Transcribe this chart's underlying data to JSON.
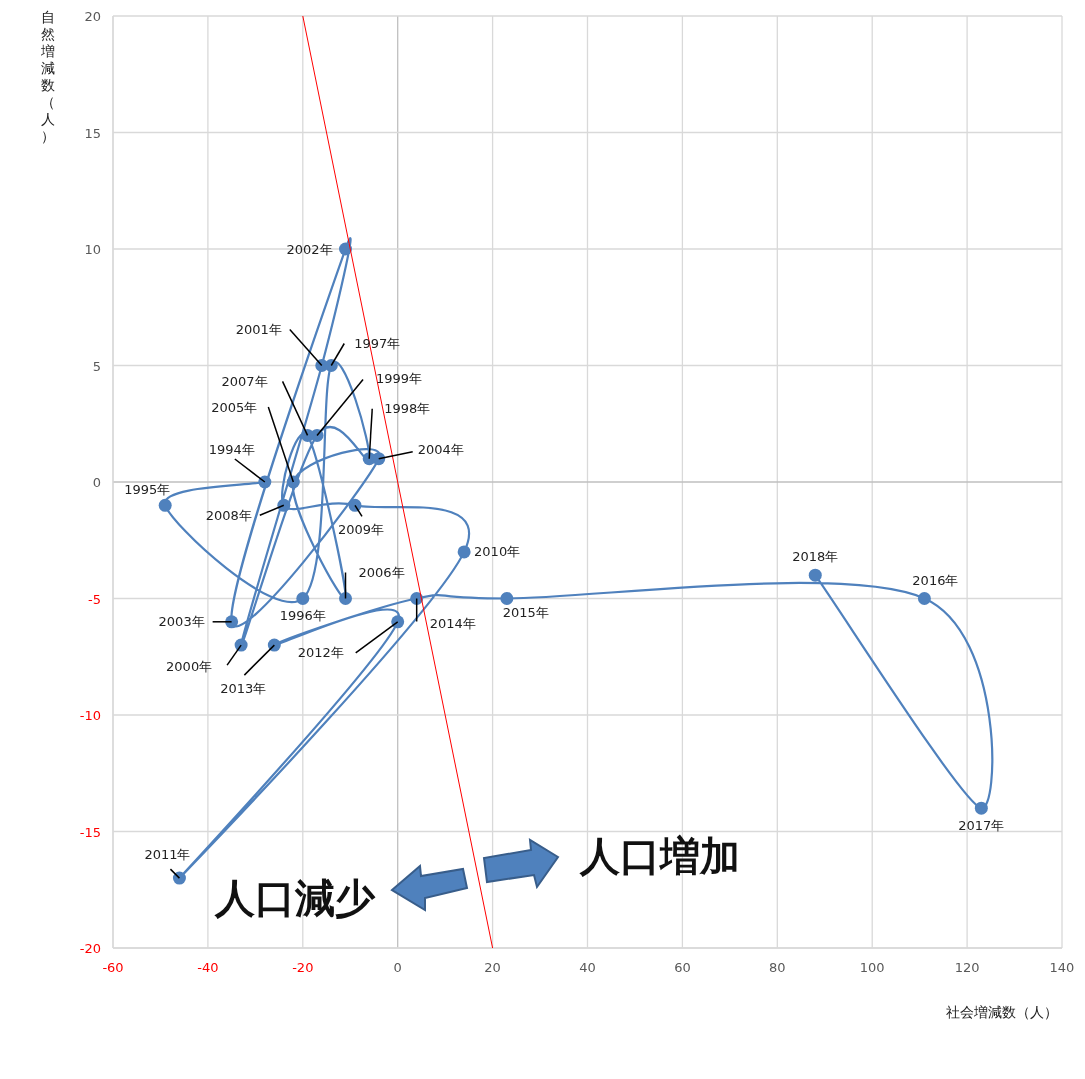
{
  "chart_data": {
    "type": "line",
    "xlabel": "社会増減数（人）",
    "ylabel": "自然増減数（人）",
    "xlim": [
      -60,
      140
    ],
    "ylim": [
      -20,
      20
    ],
    "xticks": [
      -60,
      -40,
      -20,
      0,
      20,
      40,
      60,
      80,
      100,
      120,
      140
    ],
    "yticks": [
      -20,
      -15,
      -10,
      -5,
      0,
      5,
      10,
      15,
      20
    ],
    "grid": true,
    "marker": "circle",
    "line_style": "solid",
    "annotations": [
      "人口減少",
      "人口増加",
      {
        "text": "1994年",
        "x": -28,
        "y": 0
      },
      {
        "text": "1995年",
        "x": -49,
        "y": -1
      },
      {
        "text": "1996年",
        "x": -20,
        "y": -5
      },
      {
        "text": "1997年",
        "x": -14,
        "y": 5
      },
      {
        "text": "1998年",
        "x": -6,
        "y": 1
      },
      {
        "text": "1999年",
        "x": -17,
        "y": 2
      },
      {
        "text": "2000年",
        "x": -33,
        "y": -7
      },
      {
        "text": "2001年",
        "x": -16,
        "y": 5
      },
      {
        "text": "2002年",
        "x": -11,
        "y": 10
      },
      {
        "text": "2003年",
        "x": -35,
        "y": -6
      },
      {
        "text": "2004年",
        "x": -4,
        "y": 1
      },
      {
        "text": "2005年",
        "x": -22,
        "y": 0
      },
      {
        "text": "2006年",
        "x": -11,
        "y": -5
      },
      {
        "text": "2007年",
        "x": -19,
        "y": 2
      },
      {
        "text": "2008年",
        "x": -24,
        "y": -1
      },
      {
        "text": "2009年",
        "x": -9,
        "y": -1
      },
      {
        "text": "2010年",
        "x": 14,
        "y": -3
      },
      {
        "text": "2011年",
        "x": -46,
        "y": -17
      },
      {
        "text": "2012年",
        "x": 0,
        "y": -6
      },
      {
        "text": "2013年",
        "x": -26,
        "y": -7
      },
      {
        "text": "2014年",
        "x": 4,
        "y": -5
      },
      {
        "text": "2015年",
        "x": 23,
        "y": -5
      },
      {
        "text": "2016年",
        "x": 111,
        "y": -5
      },
      {
        "text": "2017年",
        "x": 123,
        "y": -14
      },
      {
        "text": "2018年",
        "x": 88,
        "y": -4
      }
    ],
    "series": [
      {
        "color": "#4f81bd",
        "x": [
          -28,
          -49,
          -20,
          -14,
          -6,
          -17,
          -33,
          -16,
          -11,
          -35,
          -4,
          -22,
          -11,
          -19,
          -24,
          -9,
          14,
          -46,
          0,
          -26,
          4,
          23,
          111,
          123,
          88
        ],
        "values": [
          0,
          -1,
          -5,
          5,
          1,
          2,
          -7,
          5,
          10,
          -6,
          1,
          0,
          -5,
          2,
          -1,
          -1,
          -3,
          -17,
          -6,
          -7,
          -5,
          -5,
          -5,
          -14,
          -4
        ]
      },
      {
        "color": "#ff0000",
        "x": [
          -20,
          20
        ],
        "values": [
          20,
          -20
        ],
        "marker": "none"
      }
    ]
  }
}
